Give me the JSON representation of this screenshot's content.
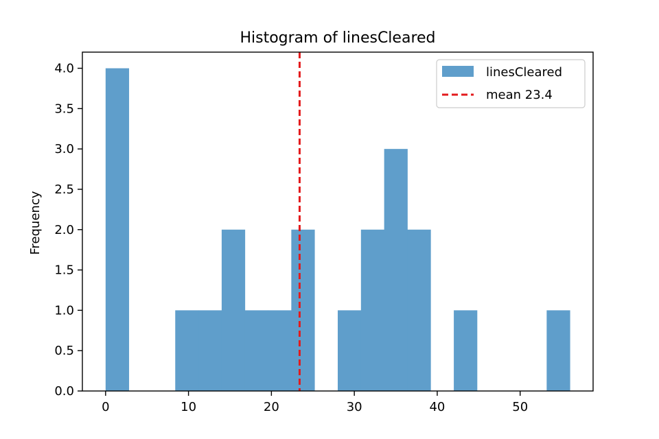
{
  "chart_data": {
    "type": "bar",
    "title": "Histogram of linesCleared",
    "xlabel": "",
    "ylabel": "Frequency",
    "xlim": [
      -2.8,
      58.8
    ],
    "ylim": [
      0,
      4.2
    ],
    "x_ticks": [
      0,
      10,
      20,
      30,
      40,
      50
    ],
    "y_ticks": [
      0.0,
      0.5,
      1.0,
      1.5,
      2.0,
      2.5,
      3.0,
      3.5,
      4.0
    ],
    "grid": false,
    "legend_placement": "top-right",
    "bins": [
      {
        "left": 0.0,
        "right": 2.8,
        "value": 4
      },
      {
        "left": 2.8,
        "right": 5.6,
        "value": 0
      },
      {
        "left": 5.6,
        "right": 8.4,
        "value": 0
      },
      {
        "left": 8.4,
        "right": 11.2,
        "value": 1
      },
      {
        "left": 11.2,
        "right": 14.0,
        "value": 1
      },
      {
        "left": 14.0,
        "right": 16.8,
        "value": 2
      },
      {
        "left": 16.8,
        "right": 19.6,
        "value": 1
      },
      {
        "left": 19.6,
        "right": 22.4,
        "value": 1
      },
      {
        "left": 22.4,
        "right": 25.2,
        "value": 2
      },
      {
        "left": 25.2,
        "right": 28.0,
        "value": 0
      },
      {
        "left": 28.0,
        "right": 30.8,
        "value": 1
      },
      {
        "left": 30.8,
        "right": 33.6,
        "value": 2
      },
      {
        "left": 33.6,
        "right": 36.4,
        "value": 3
      },
      {
        "left": 36.4,
        "right": 39.2,
        "value": 2
      },
      {
        "left": 39.2,
        "right": 42.0,
        "value": 0
      },
      {
        "left": 42.0,
        "right": 44.8,
        "value": 1
      },
      {
        "left": 44.8,
        "right": 47.6,
        "value": 0
      },
      {
        "left": 47.6,
        "right": 50.4,
        "value": 0
      },
      {
        "left": 50.4,
        "right": 53.2,
        "value": 0
      },
      {
        "left": 53.2,
        "right": 56.0,
        "value": 1
      }
    ],
    "mean_line": {
      "x": 23.4,
      "label": "mean 23.4",
      "color": "#e31a1c"
    },
    "series": [
      {
        "name": "linesCleared",
        "color": "#5f9ecb"
      }
    ]
  }
}
